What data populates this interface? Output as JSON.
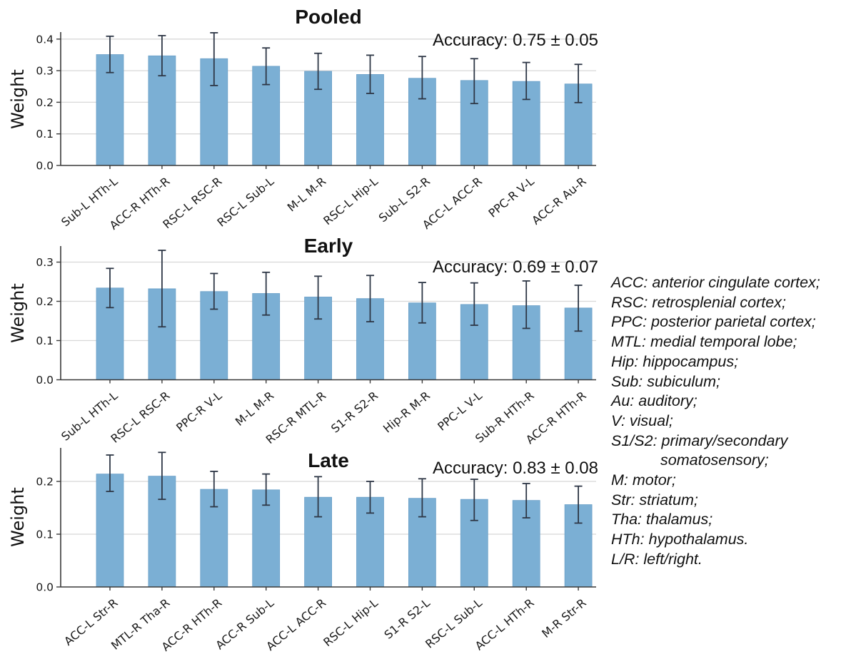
{
  "style": {
    "background": "#ffffff",
    "bar_fill": "#7bafd4",
    "bar_edge": "#6ba0c8",
    "error_bar_color": "#2e3746",
    "grid_color": "#d8d8d8",
    "axis_color": "#3a3a3a",
    "text_color": "#111111"
  },
  "chart_data": [
    {
      "type": "bar",
      "title": "Pooled",
      "annotation": "Accuracy: 0.75 ± 0.05",
      "ylabel": "Weight",
      "xlabel": "",
      "grid": true,
      "legend_position": "none",
      "categories": [
        "Sub-L HTh-L",
        "ACC-R HTh-R",
        "RSC-L RSC-R",
        "RSC-L Sub-L",
        "M-L M-R",
        "RSC-L Hip-L",
        "Sub-L S2-R",
        "ACC-L ACC-R",
        "PPC-R V-L",
        "ACC-R Au-R"
      ],
      "values": [
        0.351,
        0.347,
        0.338,
        0.314,
        0.298,
        0.288,
        0.276,
        0.269,
        0.266,
        0.258
      ],
      "error_low": [
        0.294,
        0.284,
        0.253,
        0.256,
        0.241,
        0.228,
        0.211,
        0.196,
        0.209,
        0.199
      ],
      "error_high": [
        0.409,
        0.411,
        0.42,
        0.372,
        0.355,
        0.349,
        0.345,
        0.338,
        0.326,
        0.32
      ],
      "yticks": [
        0.0,
        0.1,
        0.2,
        0.3,
        0.4
      ],
      "ylim": [
        0,
        0.425
      ]
    },
    {
      "type": "bar",
      "title": "Early",
      "annotation": "Accuracy: 0.69 ± 0.07",
      "ylabel": "Weight",
      "xlabel": "",
      "grid": true,
      "legend_position": "none",
      "categories": [
        "Sub-L HTh-L",
        "RSC-L RSC-R",
        "PPC-R V-L",
        "M-L M-R",
        "RSC-R MTL-R",
        "S1-R S2-R",
        "Hip-R M-R",
        "PPC-L V-L",
        "Sub-R HTh-R",
        "ACC-R HTh-R"
      ],
      "values": [
        0.234,
        0.232,
        0.225,
        0.22,
        0.211,
        0.207,
        0.196,
        0.192,
        0.189,
        0.183
      ],
      "error_low": [
        0.184,
        0.135,
        0.18,
        0.165,
        0.155,
        0.148,
        0.145,
        0.139,
        0.131,
        0.124
      ],
      "error_high": [
        0.284,
        0.33,
        0.271,
        0.274,
        0.264,
        0.266,
        0.248,
        0.247,
        0.252,
        0.241
      ],
      "yticks": [
        0.0,
        0.1,
        0.2,
        0.3
      ],
      "ylim": [
        0,
        0.341
      ]
    },
    {
      "type": "bar",
      "title": "Late",
      "annotation": "Accuracy: 0.83 ± 0.08",
      "ylabel": "Weight",
      "xlabel": "",
      "grid": true,
      "legend_position": "none",
      "categories": [
        "ACC-L Str-R",
        "MTL-R Tha-R",
        "ACC-R HTh-R",
        "ACC-R Sub-L",
        "ACC-L ACC-R",
        "RSC-L Hip-L",
        "S1-R S2-L",
        "RSC-L Sub-L",
        "ACC-L HTh-R",
        "M-R Str-R"
      ],
      "values": [
        0.214,
        0.21,
        0.185,
        0.184,
        0.17,
        0.17,
        0.168,
        0.166,
        0.164,
        0.156
      ],
      "error_low": [
        0.181,
        0.166,
        0.152,
        0.155,
        0.133,
        0.14,
        0.133,
        0.126,
        0.131,
        0.121
      ],
      "error_high": [
        0.25,
        0.255,
        0.219,
        0.214,
        0.209,
        0.2,
        0.205,
        0.204,
        0.196,
        0.191
      ],
      "yticks": [
        0.0,
        0.1,
        0.2
      ],
      "ylim": [
        0,
        0.264
      ]
    }
  ],
  "legend": {
    "lines": [
      {
        "text": "ACC: anterior cingulate cortex;",
        "indent": false
      },
      {
        "text": "RSC: retrosplenial cortex;",
        "indent": false
      },
      {
        "text": "PPC: posterior parietal cortex;",
        "indent": false
      },
      {
        "text": "MTL: medial temporal lobe;",
        "indent": false
      },
      {
        "text": "Hip: hippocampus;",
        "indent": false
      },
      {
        "text": "Sub: subiculum;",
        "indent": false
      },
      {
        "text": "Au: auditory;",
        "indent": false
      },
      {
        "text": "V: visual;",
        "indent": false
      },
      {
        "text": "S1/S2: primary/secondary",
        "indent": false
      },
      {
        "text": "somatosensory;",
        "indent": true
      },
      {
        "text": "M: motor;",
        "indent": false
      },
      {
        "text": "Str: striatum;",
        "indent": false
      },
      {
        "text": "Tha: thalamus;",
        "indent": false
      },
      {
        "text": "HTh: hypothalamus.",
        "indent": false
      },
      {
        "text": "L/R: left/right.",
        "indent": false
      }
    ]
  }
}
